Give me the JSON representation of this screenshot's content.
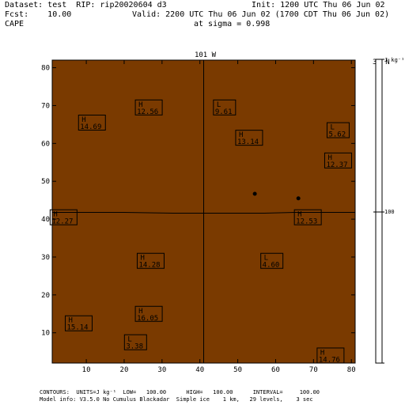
{
  "header": {
    "dataset_line": "Dataset: test  RIP: rip20020604 d3",
    "init_line": "Init: 1200 UTC Thu 06 Jun 02",
    "fcst_line": "Fcst:    10.00",
    "valid_line": "Valid: 2200 UTC Thu 06 Jun 02 (1700 CDT Thu 06 Jun 02)",
    "field_name": "CAPE",
    "sigma_line": "at sigma = 0.998"
  },
  "map": {
    "top_label": "101 W",
    "right_label": "37 N",
    "fill_color": "#7a3a00",
    "line_color": "#000000",
    "x_ticks": [
      "10",
      "20",
      "30",
      "40",
      "50",
      "60",
      "70",
      "80"
    ],
    "y_ticks": [
      "10",
      "20",
      "30",
      "40",
      "50",
      "60",
      "70",
      "80"
    ],
    "x_range": [
      1,
      81
    ],
    "y_range": [
      2,
      82
    ],
    "centers": [
      {
        "type": "H",
        "value": "14.69",
        "x": 11.5,
        "y": 65.5
      },
      {
        "type": "H",
        "value": "12.56",
        "x": 26.5,
        "y": 69.5
      },
      {
        "type": "L",
        "value": "9.61",
        "x": 46.5,
        "y": 69.5
      },
      {
        "type": "H",
        "value": "13.14",
        "x": 53.0,
        "y": 61.5
      },
      {
        "type": "L",
        "value": "5.62",
        "x": 76.5,
        "y": 63.5
      },
      {
        "type": "H",
        "value": "12.37",
        "x": 76.5,
        "y": 55.5
      },
      {
        "type": "H",
        "value": "12.27",
        "x": 4.0,
        "y": 40.5
      },
      {
        "type": "H",
        "value": "12.53",
        "x": 68.5,
        "y": 40.5
      },
      {
        "type": "H",
        "value": "14.28",
        "x": 27.0,
        "y": 29.0
      },
      {
        "type": "L",
        "value": "4.60",
        "x": 59.0,
        "y": 29.0
      },
      {
        "type": "H",
        "value": "16.05",
        "x": 26.5,
        "y": 15.0
      },
      {
        "type": "H",
        "value": "15.14",
        "x": 8.0,
        "y": 12.5
      },
      {
        "type": "L",
        "value": "3.38",
        "x": 23.0,
        "y": 7.5
      },
      {
        "type": "H",
        "value": "14.76",
        "x": 74.5,
        "y": 4.0
      }
    ],
    "dots": [
      {
        "x": 54.5,
        "y": 46.7
      },
      {
        "x": 66.0,
        "y": 45.5
      }
    ]
  },
  "colorbar": {
    "top_label": "J kg⁻¹",
    "mid_label": "100"
  },
  "footer": {
    "contours_line": "CONTOURS:  UNITS=J kg⁻¹  LOW=   100.00      HIGH=   100.00      INTERVAL=     100.00",
    "model_line": "Model info: V3.5.0 No Cumulus Blackadar  Simple ice    1 km,   29 levels,    3 sec"
  }
}
